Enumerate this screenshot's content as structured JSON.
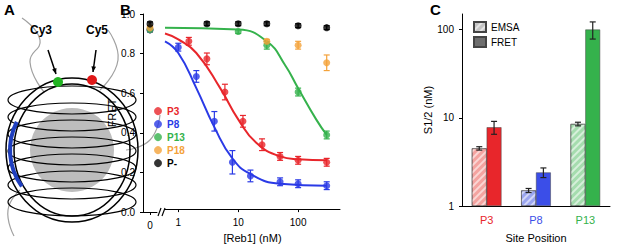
{
  "panel_a": {
    "label": "A",
    "annotations": [
      "Cy3",
      "Cy5"
    ]
  },
  "chart_data": [
    {
      "panel_label": "B",
      "type": "scatter",
      "xlabel": "[Reb1] (nM)",
      "ylabel": "FRET",
      "log": "x",
      "xlim": [
        0,
        500
      ],
      "x_break": [
        0,
        0.6
      ],
      "xticks": [
        0,
        1,
        10,
        100
      ],
      "ylim": [
        0,
        1
      ],
      "yticks": [
        {
          "value": 0,
          "label": "0.0"
        },
        0.2,
        0.4,
        0.6,
        0.8,
        {
          "value": 1,
          "label": "1.0"
        }
      ],
      "grid": false,
      "legend": "lower left",
      "marker": "circle",
      "series": [
        {
          "name": "P3",
          "color": "#e8262b",
          "x": [
            0,
            1.5,
            3,
            6,
            12,
            25,
            50,
            100,
            300
          ],
          "values": [
            0.92,
            0.86,
            0.77,
            0.6,
            0.45,
            0.33,
            0.27,
            0.25,
            0.24
          ],
          "errors": [
            0.01,
            0.02,
            0.03,
            0.04,
            0.03,
            0.03,
            0.02,
            0.02,
            0.02
          ],
          "fit": {
            "x": [
              0.6,
              1,
              2,
              5,
              10,
              20,
              50,
              100,
              300
            ],
            "values": [
              0.9,
              0.87,
              0.8,
              0.62,
              0.46,
              0.34,
              0.27,
              0.255,
              0.25
            ]
          }
        },
        {
          "name": "P8",
          "color": "#2a3ae6",
          "x": [
            0,
            1,
            2,
            4,
            8,
            16,
            50,
            100,
            300
          ],
          "values": [
            0.92,
            0.83,
            0.68,
            0.45,
            0.24,
            0.17,
            0.14,
            0.13,
            0.12
          ],
          "errors": [
            0.01,
            0.02,
            0.03,
            0.05,
            0.06,
            0.03,
            0.02,
            0.02,
            0.02
          ],
          "fit": {
            "x": [
              0.6,
              1,
              2,
              4,
              8,
              16,
              50,
              300
            ],
            "values": [
              0.86,
              0.8,
              0.62,
              0.42,
              0.26,
              0.18,
              0.13,
              0.12
            ]
          }
        },
        {
          "name": "P13",
          "color": "#35b24c",
          "x": [
            0,
            10,
            30,
            100,
            300
          ],
          "values": [
            0.92,
            0.91,
            0.84,
            0.6,
            0.38
          ],
          "errors": [
            0.01,
            0.01,
            0.02,
            0.02,
            0.02
          ],
          "fit": {
            "x": [
              0.6,
              10,
              30,
              60,
              100,
              200,
              300
            ],
            "values": [
              0.93,
              0.92,
              0.86,
              0.74,
              0.62,
              0.46,
              0.38
            ]
          }
        },
        {
          "name": "P18",
          "color": "#f4a23a",
          "x": [
            0,
            30,
            100,
            300
          ],
          "values": [
            0.93,
            0.86,
            0.84,
            0.75
          ],
          "errors": [
            0.01,
            0.01,
            0.02,
            0.04
          ]
        },
        {
          "name": "P-",
          "color": "#000000",
          "x": [
            0,
            3,
            10,
            30,
            100,
            300
          ],
          "values": [
            0.95,
            0.95,
            0.95,
            0.95,
            0.94,
            0.93
          ],
          "errors": [
            0.01,
            0.01,
            0.01,
            0.01,
            0.01,
            0.01
          ]
        }
      ]
    },
    {
      "panel_label": "C",
      "type": "bar",
      "xlabel": "Site Position",
      "ylabel": "S1/2 (nM)",
      "log": "y",
      "categories": [
        "P3",
        "P8",
        "P13"
      ],
      "ylim": [
        1,
        150
      ],
      "yticks": [
        1,
        10,
        100
      ],
      "grid": false,
      "legend": "upper left",
      "series": [
        {
          "name": "EMSA",
          "color": "#c4c4c4",
          "colors": [
            "#f4a3a0",
            "#9aa5f0",
            "#a5dcae"
          ],
          "values": [
            4.5,
            1.5,
            8.5
          ],
          "errors": [
            0.2,
            0.08,
            0.4
          ]
        },
        {
          "name": "FRET",
          "color": "#6e6e6e",
          "colors": [
            "#e8262b",
            "#3b4ee8",
            "#35b24c"
          ],
          "values": [
            7.8,
            2.4,
            100
          ],
          "errors": [
            1.3,
            0.3,
            22
          ]
        }
      ]
    }
  ]
}
